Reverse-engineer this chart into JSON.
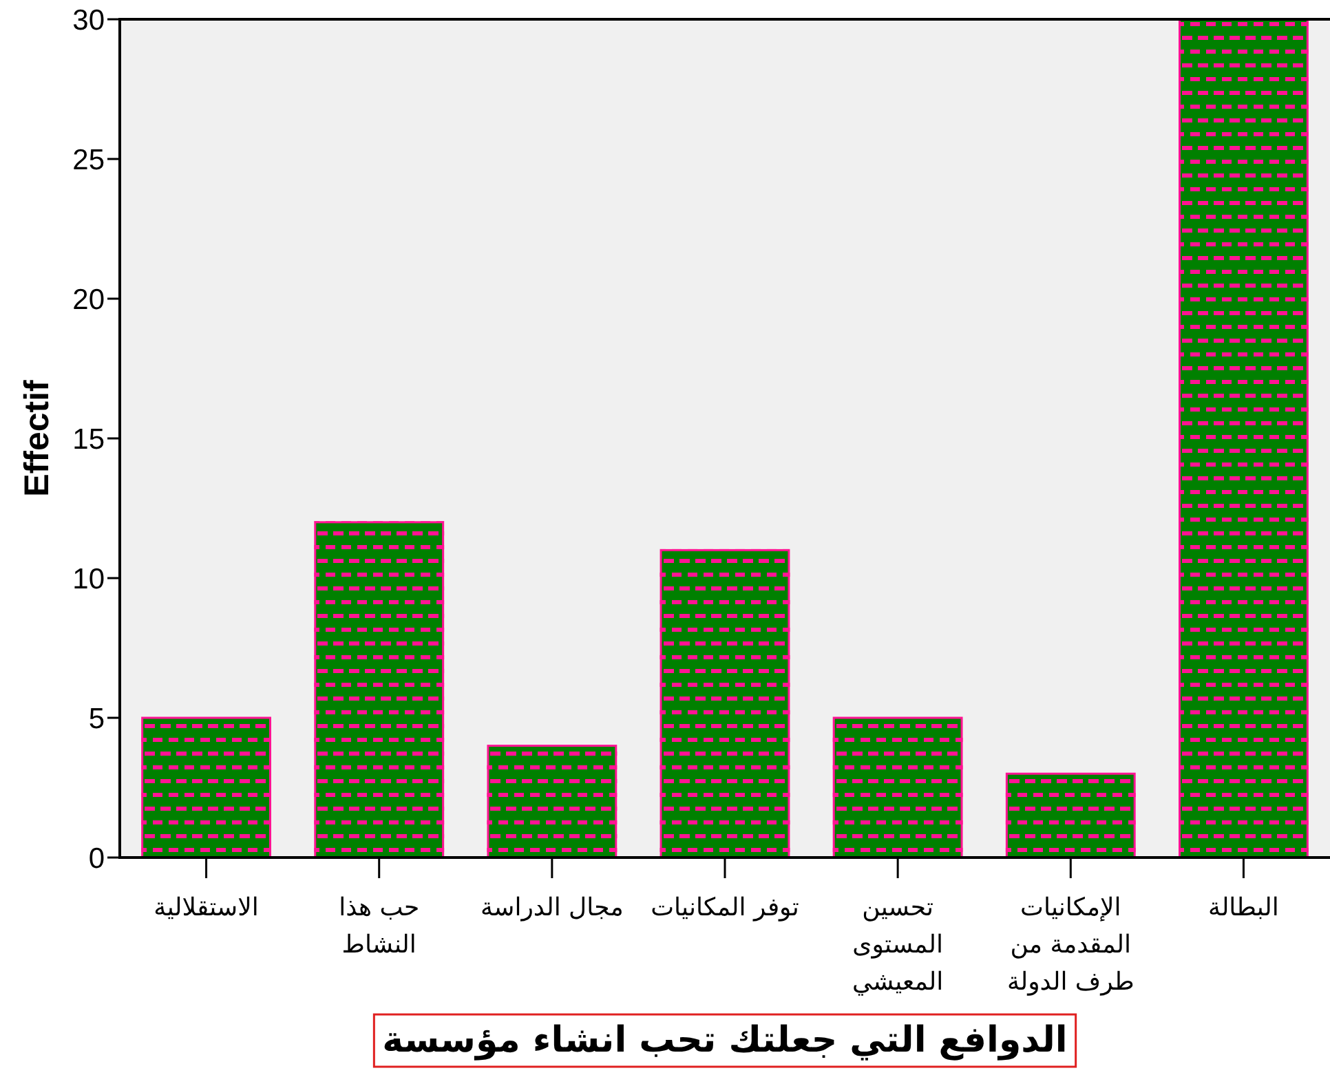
{
  "chart_data": {
    "type": "bar",
    "xlabel": "الدوافع التي جعلتك تحب انشاء مؤسسة",
    "ylabel": "Effectif",
    "categories": [
      "الاستقلالية",
      "حب هذا\nالنشاط",
      "مجال الدراسة",
      "توفر المكانيات",
      "تحسين\nالمستوى\nالمعيشي",
      "الإمكانيات\nالمقدمة من\nطرف الدولة",
      "البطالة"
    ],
    "values": [
      5,
      12,
      4,
      11,
      5,
      3,
      30
    ],
    "color": "#008000",
    "ylim": [
      0,
      30
    ],
    "yticks": [
      0,
      5,
      10,
      15,
      20,
      25,
      30
    ]
  }
}
